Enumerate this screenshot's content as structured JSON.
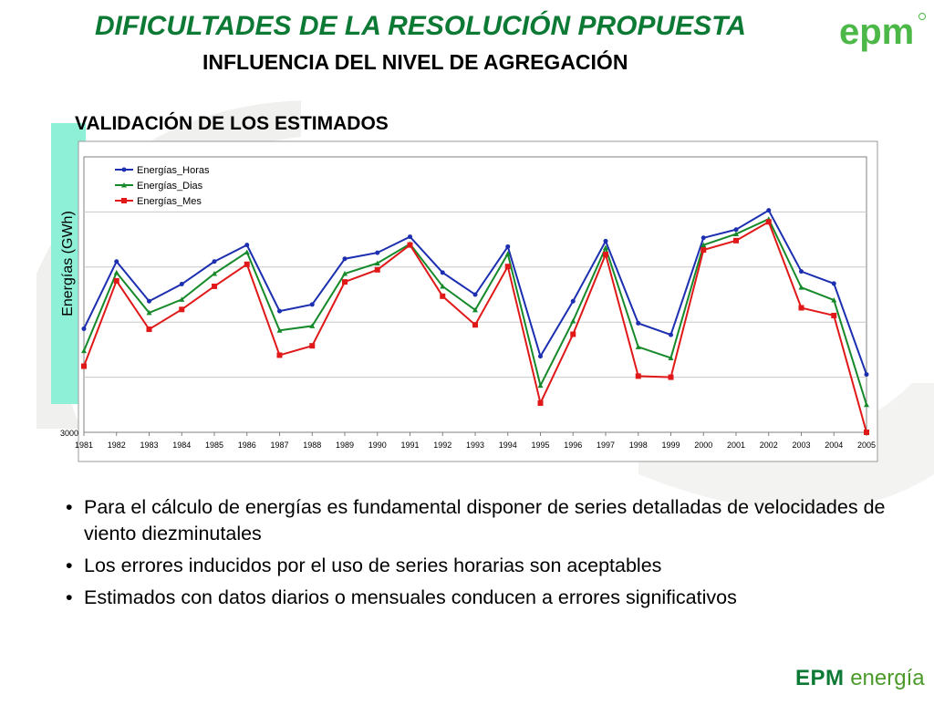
{
  "slide": {
    "title": "DIFICULTADES DE LA RESOLUCIÓN  PROPUESTA",
    "subtitle": "INFLUENCIA DEL NIVEL DE AGREGACIÓN",
    "section": "VALIDACIÓN DE LOS ESTIMADOS",
    "logo_text": "epm",
    "footer_brand": "EPM",
    "footer_word": "energía",
    "bullets": [
      "Para el cálculo de energías es fundamental disponer de series detalladas de velocidades de viento diezminutales",
      "Los errores inducidos por el uso de series horarias son aceptables",
      "Estimados con datos diarios o mensuales conducen a errores significativos"
    ]
  },
  "colors": {
    "title_green": "#0c7a34",
    "horas": "#1c2fb0",
    "dias": "#168a2a",
    "mes": "#e01818",
    "ylabel_box": "#8ff0d8"
  },
  "chart_data": {
    "type": "line",
    "ylabel": "Energías (GWh)",
    "x": [
      "1981",
      "1982",
      "1983",
      "1984",
      "1985",
      "1986",
      "1987",
      "1988",
      "1989",
      "1990",
      "1991",
      "1992",
      "1993",
      "1994",
      "1995",
      "1996",
      "1997",
      "1998",
      "1999",
      "2000",
      "2001",
      "2002",
      "2003",
      "2004",
      "2005"
    ],
    "y_tick_labels": [
      "3000"
    ],
    "ylim": [
      3000,
      8000
    ],
    "grid": true,
    "legend": "top-left",
    "series": [
      {
        "name": "Energías_Horas",
        "color": "#1c2fb0",
        "marker": "dot",
        "values": [
          4880,
          6100,
          5380,
          5690,
          6100,
          6400,
          5200,
          5320,
          6150,
          6260,
          6550,
          5900,
          5500,
          6370,
          4380,
          5380,
          6470,
          4980,
          4770,
          6530,
          6680,
          7030,
          5920,
          5700,
          4050
        ]
      },
      {
        "name": "Energías_Dias",
        "color": "#168a2a",
        "marker": "triangle",
        "values": [
          4480,
          5900,
          5170,
          5410,
          5880,
          6270,
          4850,
          4930,
          5880,
          6070,
          6420,
          5650,
          5220,
          6240,
          3850,
          5020,
          6350,
          4550,
          4350,
          6400,
          6600,
          6870,
          5630,
          5400,
          3500
        ]
      },
      {
        "name": "Energías_Mes",
        "color": "#e01818",
        "marker": "square",
        "values": [
          4200,
          5750,
          4870,
          5230,
          5650,
          6050,
          4400,
          4570,
          5730,
          5950,
          6400,
          5470,
          4950,
          6010,
          3530,
          4780,
          6230,
          4020,
          4000,
          6310,
          6480,
          6820,
          5260,
          5120,
          3000
        ]
      }
    ]
  }
}
